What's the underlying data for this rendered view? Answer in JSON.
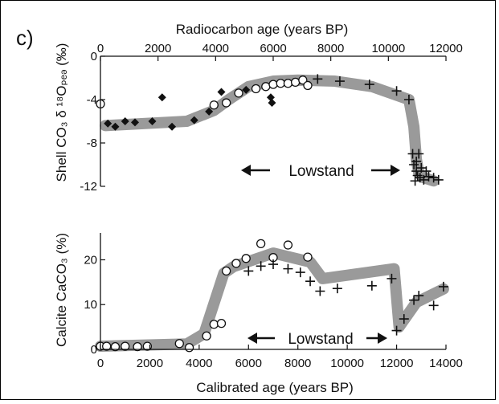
{
  "panel_label": "c)",
  "chart_data": [
    {
      "type": "scatter",
      "top_axis": {
        "label": "Radiocarbon age (years BP)",
        "range": [
          0,
          12000
        ],
        "ticks": [
          "0",
          "2000",
          "4000",
          "6000",
          "8000",
          "10000",
          "12000"
        ]
      },
      "xlim": [
        0,
        14000
      ],
      "ylabel": "Shell CO₃ δ ¹⁸Oₚₑₔ (‰)",
      "ylim": [
        -12,
        0
      ],
      "yticks": [
        "0",
        "-4",
        "-8",
        "-12"
      ],
      "annotation": "Lowstand",
      "trend": {
        "x": [
          200,
          3500,
          4600,
          5200,
          6000,
          7000,
          8000,
          9500,
          11000,
          12500,
          12700,
          12800,
          12900,
          13100,
          13500
        ],
        "y": [
          -6.4,
          -6.0,
          -5.0,
          -4.0,
          -2.8,
          -2.3,
          -2.2,
          -2.3,
          -2.8,
          -4.0,
          -6.5,
          -9.5,
          -10.8,
          -11.2,
          -11.5
        ]
      },
      "series": [
        {
          "marker": "diamond",
          "x": [
            300,
            600,
            1000,
            1400,
            2100,
            2500,
            2900,
            3800,
            4400,
            4900,
            5900,
            6900,
            6950
          ],
          "y": [
            -6.2,
            -6.5,
            -6.0,
            -6.1,
            -6.0,
            -3.8,
            -6.5,
            -5.9,
            -5.1,
            -3.3,
            -3.1,
            -3.8,
            -4.3
          ]
        },
        {
          "marker": "open-circle",
          "x": [
            0,
            4600,
            5100,
            5600,
            6300,
            6700,
            7000,
            7300,
            7600,
            7900,
            8200,
            8400
          ],
          "y": [
            -4.4,
            -4.5,
            -4.3,
            -3.4,
            -3.0,
            -2.8,
            -2.6,
            -2.5,
            -2.5,
            -2.4,
            -2.2,
            -2.7
          ]
        },
        {
          "marker": "plus",
          "x": [
            8800,
            9700,
            10900,
            12000,
            12500,
            12650,
            12700,
            12750,
            12800,
            12800,
            12850,
            12900,
            12950,
            13000,
            13100,
            13200,
            13300,
            13500,
            13700
          ],
          "y": [
            -2.1,
            -2.3,
            -2.6,
            -3.2,
            -4.0,
            -9.0,
            -10.0,
            -11.5,
            -9.7,
            -10.6,
            -11.0,
            -9.0,
            -11.2,
            -10.3,
            -11.4,
            -10.6,
            -11.1,
            -11.2,
            -11.4
          ]
        }
      ]
    },
    {
      "type": "scatter",
      "xlabel": "Calibrated age (years BP)",
      "xlim": [
        0,
        14000
      ],
      "xticks": [
        "0",
        "2000",
        "4000",
        "6000",
        "8000",
        "10000",
        "12000",
        "14000"
      ],
      "ylabel": "Calcite CaCO₃ (%)",
      "ylim": [
        0,
        26
      ],
      "yticks": [
        "0",
        "10",
        "20"
      ],
      "annotation": "Lowstand",
      "trend": {
        "x": [
          0,
          3500,
          4200,
          5000,
          5400,
          7000,
          8500,
          9000,
          11900,
          12100,
          12800,
          13900
        ],
        "y": [
          0.7,
          1.2,
          3.5,
          17.0,
          18.5,
          21.5,
          19.5,
          15.8,
          18.0,
          5.0,
          10.5,
          13.5
        ]
      },
      "series": [
        {
          "marker": "open-circle",
          "x": [
            0,
            250,
            600,
            1000,
            1500,
            1900,
            3200,
            3600,
            4300,
            4600,
            4900,
            5100,
            5500,
            5900,
            6500,
            7000,
            7600,
            8400
          ],
          "y": [
            0.7,
            0.7,
            0.6,
            0.7,
            0.6,
            0.7,
            1.3,
            0.4,
            3.0,
            5.6,
            5.8,
            17.5,
            19.2,
            20.3,
            23.6,
            20.5,
            23.3,
            20.6
          ]
        },
        {
          "marker": "plus",
          "x": [
            6000,
            6500,
            7000,
            7600,
            8100,
            8500,
            8900,
            9600,
            11000,
            11800,
            12000,
            12300,
            12700,
            12900,
            13500,
            13900
          ],
          "y": [
            17.5,
            18.6,
            19.0,
            18.0,
            17.2,
            15.2,
            13.0,
            13.6,
            14.2,
            15.8,
            4.2,
            6.8,
            11.0,
            12.0,
            9.8,
            14.0
          ]
        }
      ]
    }
  ]
}
